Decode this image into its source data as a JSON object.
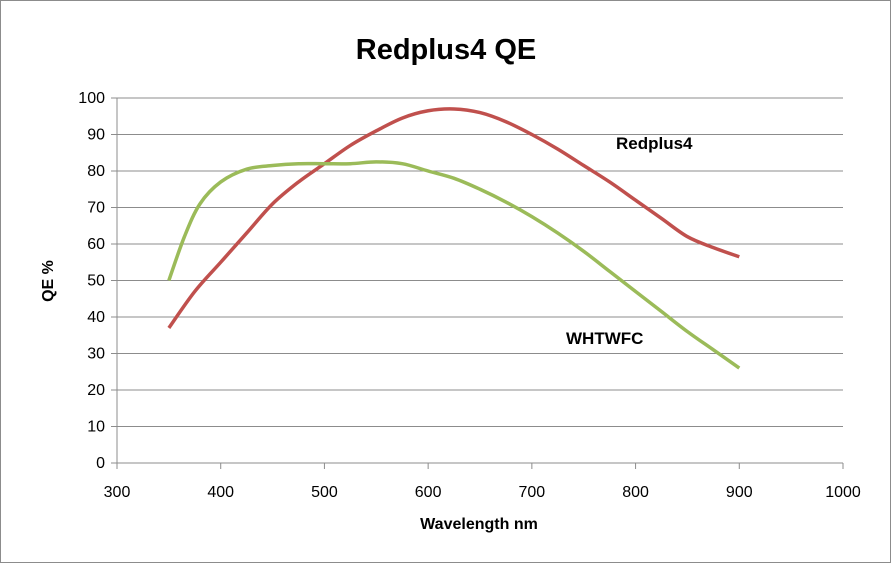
{
  "chart_data": {
    "type": "line",
    "title": "Redplus4 QE",
    "xlabel": "Wavelength nm",
    "ylabel": "QE %",
    "xlim": [
      300,
      1000
    ],
    "ylim": [
      0,
      100
    ],
    "xticks": [
      300,
      400,
      500,
      600,
      700,
      800,
      900,
      1000
    ],
    "yticks": [
      0,
      10,
      20,
      30,
      40,
      50,
      60,
      70,
      80,
      90,
      100
    ],
    "grid": "horizontal",
    "legend": "inline labels",
    "series": [
      {
        "name": "Redplus4",
        "color": "#c0504d",
        "x": [
          350,
          375,
          400,
          425,
          450,
          475,
          500,
          525,
          550,
          575,
          600,
          625,
          650,
          675,
          700,
          725,
          750,
          775,
          800,
          825,
          850,
          875,
          900
        ],
        "y": [
          37,
          47,
          55,
          63,
          71,
          77,
          82,
          87,
          91,
          94.5,
          96.5,
          97,
          96,
          93.5,
          90,
          86,
          81.5,
          77,
          72,
          67,
          62,
          59,
          56.5
        ]
      },
      {
        "name": "WHTWFC",
        "color": "#9bbb59",
        "x": [
          350,
          365,
          380,
          400,
          425,
          450,
          475,
          500,
          525,
          550,
          575,
          600,
          625,
          650,
          675,
          700,
          725,
          750,
          775,
          800,
          825,
          850,
          875,
          900
        ],
        "y": [
          50,
          62,
          71,
          77,
          80.5,
          81.5,
          82,
          82,
          82,
          82.5,
          82,
          80,
          78,
          75,
          71.5,
          67.5,
          63,
          58,
          52.5,
          47,
          41.5,
          36,
          31,
          26
        ]
      }
    ]
  }
}
